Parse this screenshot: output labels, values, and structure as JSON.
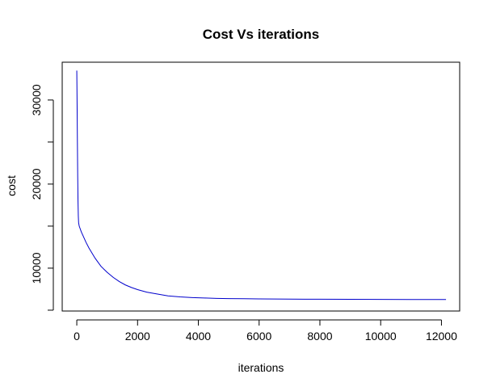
{
  "chart_data": {
    "type": "line",
    "title": "Cost Vs iterations",
    "xlabel": "iterations",
    "ylabel": "cost",
    "xlim": [
      -480,
      12600
    ],
    "ylim": [
      4900,
      34500
    ],
    "x_ticks": [
      0,
      2000,
      4000,
      6000,
      8000,
      10000,
      12000
    ],
    "x_tick_labels": [
      "0",
      "2000",
      "4000",
      "6000",
      "8000",
      "10000",
      "12000"
    ],
    "y_ticks": [
      5000,
      10000,
      15000,
      20000,
      25000,
      30000
    ],
    "y_tick_labels": [
      "",
      "10000",
      "",
      "20000",
      "",
      "30000"
    ],
    "grid": false,
    "series": [
      {
        "color": "#0000cc",
        "x": [
          0,
          10,
          20,
          30,
          40,
          50,
          60,
          80,
          100,
          150,
          200,
          300,
          400,
          500,
          600,
          700,
          800,
          1000,
          1200,
          1400,
          1600,
          1800,
          2000,
          2300,
          2600,
          3000,
          3400,
          3800,
          4200,
          4600,
          5000,
          5500,
          6000,
          6500,
          7000,
          7500,
          8000,
          9000,
          10000,
          11000,
          12150
        ],
        "y": [
          33500,
          29500,
          25000,
          21000,
          18000,
          16200,
          15400,
          15000,
          14800,
          14300,
          13900,
          13100,
          12400,
          11800,
          11200,
          10700,
          10200,
          9500,
          8900,
          8400,
          8000,
          7700,
          7450,
          7150,
          6950,
          6700,
          6580,
          6500,
          6450,
          6400,
          6380,
          6360,
          6340,
          6330,
          6320,
          6310,
          6300,
          6290,
          6280,
          6275,
          6270
        ]
      }
    ]
  }
}
